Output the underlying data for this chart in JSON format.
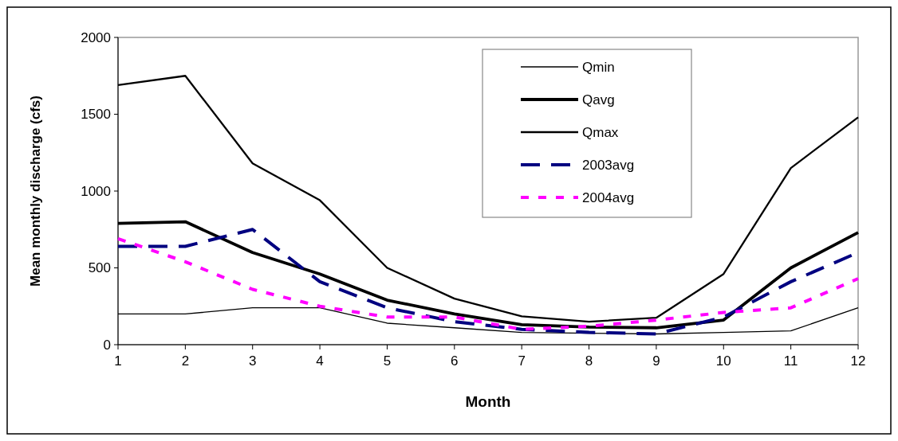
{
  "chart_data": {
    "type": "line",
    "xlabel": "Month",
    "ylabel": "Mean monthly discharge (cfs)",
    "x": [
      1,
      2,
      3,
      4,
      5,
      6,
      7,
      8,
      9,
      10,
      11,
      12
    ],
    "xlim": [
      1,
      12
    ],
    "xticks": [
      1,
      2,
      3,
      4,
      5,
      6,
      7,
      8,
      9,
      10,
      11,
      12
    ],
    "ylim": [
      0,
      2000
    ],
    "yticks": [
      0,
      500,
      1000,
      1500,
      2000
    ],
    "grid": false,
    "legend": "top right",
    "series": [
      {
        "name": "Qmin",
        "color": "#000000",
        "line_style": "solid",
        "values": [
          200,
          200,
          240,
          240,
          140,
          110,
          80,
          75,
          70,
          80,
          90,
          240
        ]
      },
      {
        "name": "Qavg",
        "color": "#000000",
        "line_style": "solid",
        "values": [
          790,
          800,
          600,
          460,
          290,
          200,
          130,
          115,
          110,
          160,
          500,
          730
        ]
      },
      {
        "name": "Qmax",
        "color": "#000000",
        "line_style": "solid",
        "values": [
          1690,
          1750,
          1180,
          940,
          500,
          300,
          185,
          150,
          175,
          460,
          1150,
          1480
        ]
      },
      {
        "name": "2003avg",
        "color": "#000080",
        "line_style": "dashed",
        "values": [
          640,
          640,
          750,
          410,
          240,
          150,
          100,
          80,
          70,
          180,
          410,
          600
        ]
      },
      {
        "name": "2004avg",
        "color": "#ff00ff",
        "line_style": "dotted",
        "values": [
          690,
          540,
          360,
          250,
          180,
          180,
          100,
          120,
          160,
          210,
          240,
          430
        ]
      }
    ]
  }
}
